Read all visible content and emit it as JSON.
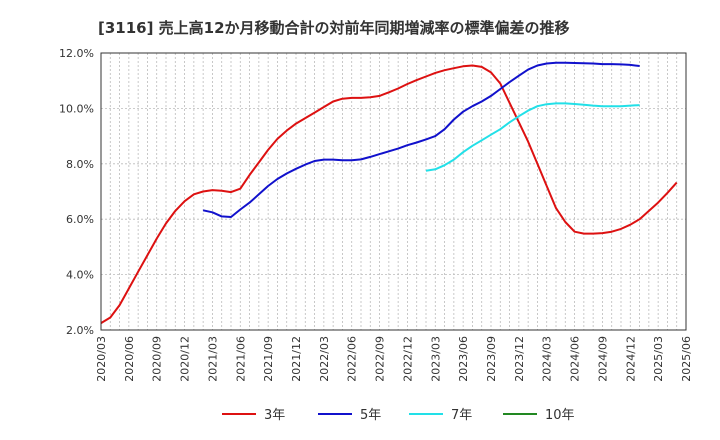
{
  "chart_data": {
    "type": "line",
    "title": "[3116]  売上高12か月移動合計の対前年同期増減率の標準偏差の推移",
    "ylim": [
      2.0,
      12.0
    ],
    "y_ticks": [
      "2.0%",
      "4.0%",
      "6.0%",
      "8.0%",
      "10.0%",
      "12.0%"
    ],
    "y_tick_values": [
      2,
      4,
      6,
      8,
      10,
      12
    ],
    "x_ticks": [
      "2020/03",
      "2020/06",
      "2020/09",
      "2020/12",
      "2021/03",
      "2021/06",
      "2021/09",
      "2021/12",
      "2022/03",
      "2022/06",
      "2022/09",
      "2022/12",
      "2023/03",
      "2023/06",
      "2023/09",
      "2023/12",
      "2024/03",
      "2024/06",
      "2024/09",
      "2024/12",
      "2025/03",
      "2025/06"
    ],
    "grid": true,
    "legend_position": "bottom",
    "series": [
      {
        "name": "3年",
        "color": "#dd1111",
        "start": "2020/03",
        "values": [
          2.25,
          2.45,
          2.9,
          3.5,
          4.1,
          4.7,
          5.3,
          5.85,
          6.3,
          6.65,
          6.9,
          7.0,
          7.05,
          7.03,
          6.98,
          7.1,
          7.6,
          8.05,
          8.5,
          8.9,
          9.2,
          9.45,
          9.65,
          9.85,
          10.05,
          10.25,
          10.35,
          10.38,
          10.38,
          10.4,
          10.45,
          10.58,
          10.72,
          10.88,
          11.02,
          11.15,
          11.28,
          11.38,
          11.45,
          11.52,
          11.55,
          11.5,
          11.3,
          10.9,
          10.2,
          9.5,
          8.8,
          8.0,
          7.2,
          6.4,
          5.9,
          5.55,
          5.48,
          5.48,
          5.5,
          5.55,
          5.65,
          5.8,
          6.0,
          6.3,
          6.6,
          6.95,
          7.32
        ]
      },
      {
        "name": "5年",
        "color": "#1111cc",
        "start": "2021/02",
        "values": [
          6.32,
          6.25,
          6.1,
          6.08,
          6.35,
          6.6,
          6.9,
          7.2,
          7.45,
          7.65,
          7.82,
          7.97,
          8.1,
          8.15,
          8.15,
          8.13,
          8.13,
          8.16,
          8.25,
          8.35,
          8.45,
          8.55,
          8.67,
          8.77,
          8.88,
          9.0,
          9.25,
          9.6,
          9.88,
          10.08,
          10.25,
          10.45,
          10.7,
          10.95,
          11.18,
          11.4,
          11.55,
          11.62,
          11.65,
          11.65,
          11.64,
          11.63,
          11.62,
          11.6,
          11.6,
          11.59,
          11.57,
          11.53
        ]
      },
      {
        "name": "7年",
        "color": "#22e0e8",
        "start": "2023/02",
        "values": [
          7.75,
          7.8,
          7.95,
          8.15,
          8.42,
          8.65,
          8.85,
          9.05,
          9.25,
          9.5,
          9.72,
          9.92,
          10.08,
          10.15,
          10.18,
          10.18,
          10.16,
          10.13,
          10.1,
          10.08,
          10.08,
          10.08,
          10.1,
          10.12
        ]
      },
      {
        "name": "10年",
        "color": "#228822",
        "start": "",
        "values": []
      }
    ]
  }
}
